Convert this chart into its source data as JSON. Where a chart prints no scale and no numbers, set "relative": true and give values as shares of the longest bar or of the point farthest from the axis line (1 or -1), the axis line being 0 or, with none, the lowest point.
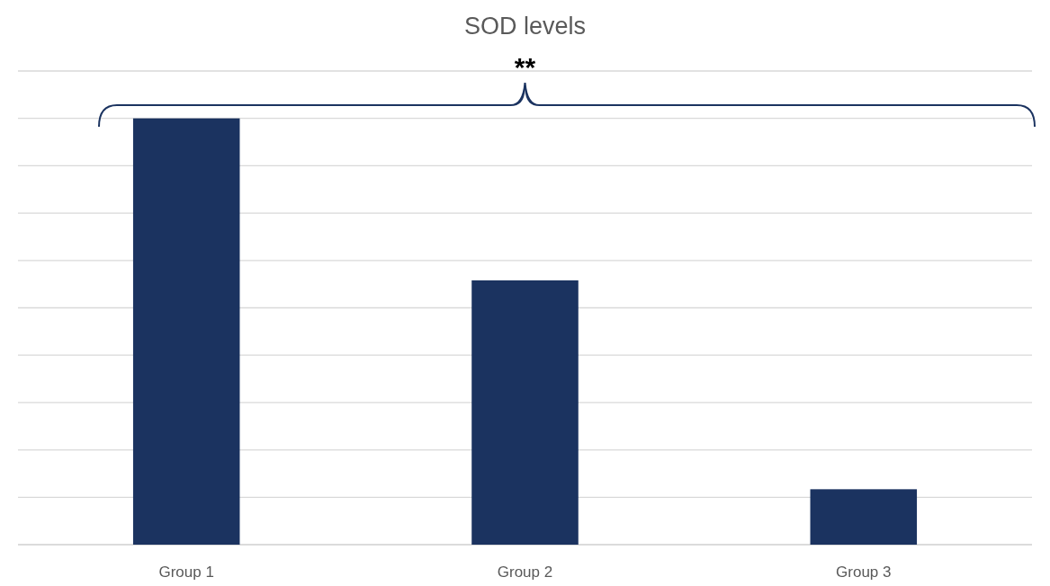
{
  "chart_data": {
    "type": "bar",
    "title": "SOD levels",
    "categories": [
      "Group 1",
      "Group 2",
      "Group 3"
    ],
    "values": [
      1,
      0.62,
      0.13
    ],
    "color": "#1b3360",
    "relative": true,
    "grid": true,
    "annotations": [
      "**"
    ]
  }
}
